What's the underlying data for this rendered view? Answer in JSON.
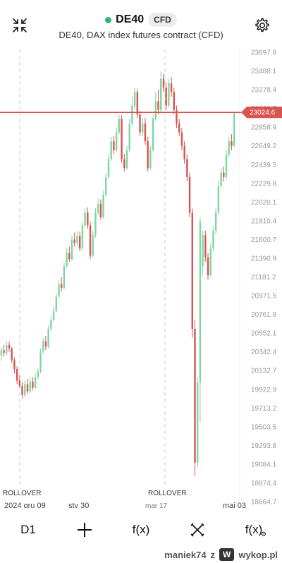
{
  "header": {
    "symbol": "DE40",
    "badge": "CFD",
    "subtitle": "DE40, DAX index futures contract (CFD)",
    "status_color": "#2eb872"
  },
  "icons": {
    "collapse": "collapse-arrows-icon",
    "settings": "gear-icon"
  },
  "chart_data": {
    "type": "candlestick",
    "y_axis_labels": [
      "23697.8",
      "23488.1",
      "23278.4",
      "23068.7",
      "22858.9",
      "22649.2",
      "22439.5",
      "22229.8",
      "22020.1",
      "21810.4",
      "21600.7",
      "21390.9",
      "21181.2",
      "20971.5",
      "20761.8",
      "20552.1",
      "20342.4",
      "20132.7",
      "19922.9",
      "19713.2",
      "19503.5",
      "19293.8",
      "19084.1",
      "18874.4",
      "18664.7"
    ],
    "ylim": [
      18664.7,
      23697.8
    ],
    "x_labels": [
      "2024 gru 09",
      "sty 30",
      "mar 17",
      "maj 03"
    ],
    "annotations": [
      "ROLLOVER",
      "ROLLOVER"
    ],
    "current_price": "23024.6",
    "current_price_value": 23024.6,
    "up_color": "#7ed6a0",
    "down_color": "#d9534f",
    "price_line_color": "#d9534f",
    "candles": [
      [
        20300,
        20360,
        20240,
        20390
      ],
      [
        20360,
        20330,
        20290,
        20420
      ],
      [
        20330,
        20420,
        20300,
        20450
      ],
      [
        20420,
        20380,
        20340,
        20460
      ],
      [
        20380,
        20250,
        20220,
        20400
      ],
      [
        20250,
        20150,
        20100,
        20280
      ],
      [
        20150,
        20020,
        19980,
        20180
      ],
      [
        20020,
        19960,
        19940,
        20080
      ],
      [
        19960,
        19860,
        19820,
        20000
      ],
      [
        19860,
        19980,
        19830,
        20020
      ],
      [
        19980,
        19900,
        19870,
        20040
      ],
      [
        19900,
        20010,
        19880,
        20050
      ],
      [
        20010,
        19940,
        19910,
        20060
      ],
      [
        19940,
        20060,
        19920,
        20100
      ],
      [
        20060,
        20120,
        20030,
        20160
      ],
      [
        20120,
        20350,
        20100,
        20380
      ],
      [
        20350,
        20460,
        20320,
        20500
      ],
      [
        20460,
        20400,
        20360,
        20520
      ],
      [
        20400,
        20600,
        20380,
        20640
      ],
      [
        20600,
        20700,
        20570,
        20750
      ],
      [
        20700,
        20800,
        20680,
        20850
      ],
      [
        20800,
        20960,
        20780,
        21000
      ],
      [
        20960,
        21100,
        20940,
        21150
      ],
      [
        21100,
        21060,
        21020,
        21180
      ],
      [
        21060,
        21300,
        21040,
        21340
      ],
      [
        21300,
        21450,
        21280,
        21500
      ],
      [
        21450,
        21380,
        21350,
        21520
      ],
      [
        21380,
        21600,
        21360,
        21650
      ],
      [
        21600,
        21560,
        21520,
        21680
      ],
      [
        21560,
        21640,
        21520,
        21700
      ],
      [
        21640,
        21500,
        21470,
        21690
      ],
      [
        21500,
        21760,
        21480,
        21800
      ],
      [
        21760,
        21900,
        21740,
        21950
      ],
      [
        21900,
        21760,
        21720,
        21960
      ],
      [
        21760,
        21420,
        21380,
        21800
      ],
      [
        21420,
        21650,
        21400,
        21700
      ],
      [
        21650,
        21900,
        21620,
        21950
      ],
      [
        21900,
        22000,
        21870,
        22060
      ],
      [
        22000,
        21850,
        21820,
        22050
      ],
      [
        21850,
        22100,
        21830,
        22150
      ],
      [
        22100,
        22300,
        22080,
        22350
      ],
      [
        22300,
        22500,
        22280,
        22560
      ],
      [
        22500,
        22700,
        22480,
        22750
      ],
      [
        22700,
        22600,
        22560,
        22760
      ],
      [
        22600,
        22800,
        22580,
        22850
      ],
      [
        22800,
        22950,
        22780,
        23000
      ],
      [
        22950,
        22500,
        22460,
        22990
      ],
      [
        22500,
        22400,
        22360,
        22560
      ],
      [
        22400,
        22600,
        22380,
        22650
      ],
      [
        22600,
        22900,
        22580,
        22950
      ],
      [
        22900,
        23100,
        22870,
        23200
      ],
      [
        23100,
        23250,
        23060,
        23300
      ],
      [
        23250,
        23000,
        22960,
        23290
      ],
      [
        23000,
        22800,
        22760,
        23040
      ],
      [
        22800,
        22900,
        22760,
        22960
      ],
      [
        22900,
        22700,
        22660,
        22960
      ],
      [
        22700,
        22400,
        22360,
        22750
      ],
      [
        22400,
        22600,
        22380,
        22650
      ],
      [
        22600,
        22950,
        22580,
        23000
      ],
      [
        22950,
        23150,
        22930,
        23250
      ],
      [
        23150,
        23050,
        23000,
        23280
      ],
      [
        23050,
        23400,
        23030,
        23480
      ],
      [
        23400,
        23300,
        23250,
        23460
      ],
      [
        23300,
        23100,
        23050,
        23350
      ],
      [
        23100,
        23350,
        23080,
        23400
      ],
      [
        23350,
        23250,
        23200,
        23420
      ],
      [
        23250,
        23050,
        23000,
        23300
      ],
      [
        23050,
        22900,
        22850,
        23100
      ],
      [
        22900,
        22800,
        22760,
        22950
      ],
      [
        22800,
        22650,
        22600,
        22850
      ],
      [
        22650,
        22500,
        22450,
        22700
      ],
      [
        22500,
        22300,
        22250,
        22550
      ],
      [
        22300,
        21900,
        21850,
        22350
      ],
      [
        21900,
        20600,
        20500,
        21950
      ],
      [
        20600,
        19100,
        18950,
        20700
      ],
      [
        19100,
        20000,
        19050,
        20050
      ],
      [
        20000,
        21800,
        19550,
        21850
      ],
      [
        21300,
        21650,
        21200,
        21700
      ],
      [
        21650,
        21400,
        21350,
        21700
      ],
      [
        21400,
        21200,
        21150,
        21450
      ],
      [
        21200,
        21500,
        21180,
        21550
      ],
      [
        21500,
        21700,
        21470,
        21750
      ],
      [
        21700,
        21900,
        21660,
        21950
      ],
      [
        21900,
        22200,
        21870,
        22250
      ],
      [
        22200,
        22350,
        22180,
        22400
      ],
      [
        22350,
        22300,
        22250,
        22420
      ],
      [
        22300,
        22550,
        22280,
        22600
      ],
      [
        22550,
        22700,
        22520,
        22750
      ],
      [
        22700,
        22650,
        22600,
        22780
      ],
      [
        22650,
        23024.6,
        22630,
        23024.6
      ]
    ]
  },
  "toolbar": {
    "interval": "D1",
    "indicators": "f(x)",
    "indicator_settings": "f(x)"
  },
  "watermark": {
    "user": "maniek74",
    "z": "z",
    "site": "wykop.pl"
  }
}
